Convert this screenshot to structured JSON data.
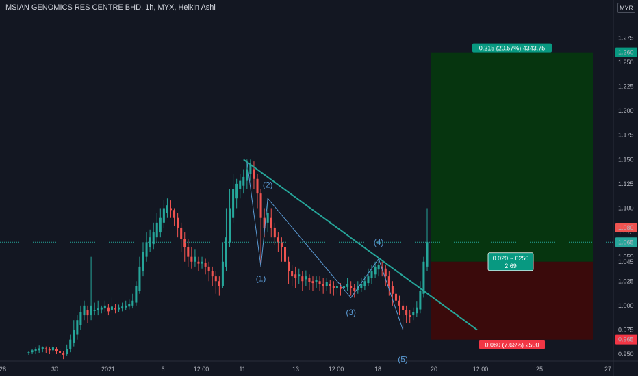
{
  "header": {
    "title": "MSIAN GENOMICS RES CENTRE BHD, 1h, MYX, Heikin Ashi",
    "currency": "MYR"
  },
  "colors": {
    "background": "#131722",
    "up": "#26a69a",
    "down": "#ef5350",
    "trendline": "#26a69a",
    "wave": "#5b9bd5",
    "profit_zone": "#06350f",
    "loss_zone": "#3a0a0b"
  },
  "chart_data": {
    "type": "candlestick",
    "style": "Heikin Ashi",
    "timeframe": "1h",
    "yaxis": {
      "range": [
        0.943,
        1.297
      ],
      "ticks": [
        0.95,
        0.975,
        1.0,
        1.025,
        1.05,
        1.075,
        1.1,
        1.125,
        1.15,
        1.175,
        1.2,
        1.225,
        1.25,
        1.275
      ],
      "tick_labels": [
        "0.950",
        "0.975",
        "1.000",
        "1.025",
        "1.050",
        "1.075",
        "1.100",
        "1.125",
        "1.150",
        "1.175",
        "1.200",
        "1.225",
        "1.250",
        "1.275"
      ],
      "price_tags": [
        {
          "value": 1.26,
          "label": "1.260",
          "color": "#089981"
        },
        {
          "value": 1.08,
          "label": "1.080",
          "color": "#ef5350"
        },
        {
          "value": 1.065,
          "label": "1.065",
          "color": "#26a69a"
        },
        {
          "value": 1.045,
          "label": "1.045",
          "color": "#131722"
        },
        {
          "value": 0.965,
          "label": "0.965",
          "color": "#f23645"
        }
      ]
    },
    "xaxis": {
      "tick_labels": [
        "28",
        "30",
        "2021",
        "6",
        "12:00",
        "11",
        "13",
        "12:00",
        "18",
        "20",
        "12:00",
        "25",
        "27"
      ]
    },
    "candles": [
      [
        0.951,
        0.952,
        0.949,
        0.953,
        "up"
      ],
      [
        0.952,
        0.954,
        0.95,
        0.955,
        "up"
      ],
      [
        0.953,
        0.955,
        0.95,
        0.957,
        "up"
      ],
      [
        0.954,
        0.956,
        0.951,
        0.959,
        "up"
      ],
      [
        0.955,
        0.957,
        0.952,
        0.958,
        "up"
      ],
      [
        0.956,
        0.955,
        0.951,
        0.958,
        "down"
      ],
      [
        0.955,
        0.954,
        0.95,
        0.957,
        "down"
      ],
      [
        0.954,
        0.957,
        0.952,
        0.959,
        "up"
      ],
      [
        0.955,
        0.953,
        0.95,
        0.957,
        "down"
      ],
      [
        0.953,
        0.951,
        0.947,
        0.955,
        "down"
      ],
      [
        0.951,
        0.949,
        0.945,
        0.953,
        "down"
      ],
      [
        0.95,
        0.955,
        0.948,
        0.96,
        "up"
      ],
      [
        0.955,
        0.965,
        0.952,
        0.97,
        "up"
      ],
      [
        0.962,
        0.975,
        0.958,
        0.985,
        "up"
      ],
      [
        0.97,
        0.985,
        0.965,
        0.99,
        "up"
      ],
      [
        0.98,
        0.993,
        0.975,
        1.0,
        "up"
      ],
      [
        0.99,
        1.0,
        0.985,
        1.005,
        "up"
      ],
      [
        0.995,
        0.99,
        0.982,
        1.0,
        "down"
      ],
      [
        0.99,
        1.0,
        0.985,
        1.05,
        "up"
      ],
      [
        0.995,
        0.995,
        0.99,
        1.003,
        "up"
      ],
      [
        0.995,
        0.997,
        0.99,
        1.005,
        "up"
      ],
      [
        0.996,
        0.998,
        0.992,
        1.0,
        "up"
      ],
      [
        0.997,
        1.0,
        0.993,
        1.005,
        "up"
      ],
      [
        0.998,
        0.994,
        0.99,
        1.002,
        "down"
      ],
      [
        0.995,
        0.999,
        0.992,
        1.008,
        "up"
      ],
      [
        0.997,
        0.996,
        0.992,
        1.002,
        "down"
      ],
      [
        0.996,
        0.998,
        0.993,
        1.001,
        "up"
      ],
      [
        0.997,
        0.999,
        0.994,
        1.003,
        "up"
      ],
      [
        0.998,
        1.0,
        0.995,
        1.005,
        "up"
      ],
      [
        0.999,
        1.002,
        0.996,
        1.006,
        "up"
      ],
      [
        1.0,
        1.005,
        0.997,
        1.012,
        "up"
      ],
      [
        1.003,
        1.02,
        1.0,
        1.025,
        "up"
      ],
      [
        1.015,
        1.04,
        1.012,
        1.05,
        "up"
      ],
      [
        1.035,
        1.055,
        1.03,
        1.065,
        "up"
      ],
      [
        1.05,
        1.065,
        1.045,
        1.075,
        "up"
      ],
      [
        1.06,
        1.07,
        1.055,
        1.078,
        "up"
      ],
      [
        1.063,
        1.075,
        1.058,
        1.085,
        "up"
      ],
      [
        1.07,
        1.085,
        1.065,
        1.095,
        "up"
      ],
      [
        1.075,
        1.09,
        1.07,
        1.1,
        "up"
      ],
      [
        1.085,
        1.1,
        1.08,
        1.108,
        "up"
      ],
      [
        1.095,
        1.103,
        1.09,
        1.11,
        "up"
      ],
      [
        1.1,
        1.098,
        1.09,
        1.108,
        "down"
      ],
      [
        1.098,
        1.09,
        1.082,
        1.1,
        "down"
      ],
      [
        1.09,
        1.08,
        1.07,
        1.095,
        "down"
      ],
      [
        1.08,
        1.068,
        1.055,
        1.085,
        "down"
      ],
      [
        1.068,
        1.06,
        1.045,
        1.075,
        "down"
      ],
      [
        1.06,
        1.05,
        1.04,
        1.068,
        "down"
      ],
      [
        1.05,
        1.045,
        1.038,
        1.06,
        "down"
      ],
      [
        1.045,
        1.05,
        1.04,
        1.058,
        "up"
      ],
      [
        1.045,
        1.043,
        1.035,
        1.05,
        "down"
      ],
      [
        1.043,
        1.045,
        1.038,
        1.05,
        "up"
      ],
      [
        1.044,
        1.04,
        1.032,
        1.048,
        "down"
      ],
      [
        1.04,
        1.035,
        1.025,
        1.045,
        "down"
      ],
      [
        1.035,
        1.03,
        1.02,
        1.04,
        "down"
      ],
      [
        1.03,
        1.025,
        1.012,
        1.035,
        "down"
      ],
      [
        1.025,
        1.02,
        1.01,
        1.03,
        "down"
      ],
      [
        1.02,
        1.045,
        1.018,
        1.065,
        "up"
      ],
      [
        1.04,
        1.07,
        1.035,
        1.1,
        "up"
      ],
      [
        1.065,
        1.1,
        1.06,
        1.12,
        "up"
      ],
      [
        1.09,
        1.12,
        1.085,
        1.135,
        "up"
      ],
      [
        1.11,
        1.125,
        1.1,
        1.13,
        "up"
      ],
      [
        1.12,
        1.128,
        1.11,
        1.135,
        "up"
      ],
      [
        1.123,
        1.132,
        1.115,
        1.14,
        "up"
      ],
      [
        1.128,
        1.14,
        1.12,
        1.15,
        "up"
      ],
      [
        1.135,
        1.145,
        1.128,
        1.15,
        "up"
      ],
      [
        1.14,
        1.13,
        1.12,
        1.148,
        "down"
      ],
      [
        1.13,
        1.115,
        1.1,
        1.135,
        "down"
      ],
      [
        1.115,
        1.09,
        1.04,
        1.12,
        "down"
      ],
      [
        1.09,
        1.08,
        1.07,
        1.1,
        "down"
      ],
      [
        1.085,
        1.095,
        1.075,
        1.11,
        "up"
      ],
      [
        1.09,
        1.08,
        1.07,
        1.1,
        "down"
      ],
      [
        1.08,
        1.07,
        1.062,
        1.085,
        "down"
      ],
      [
        1.07,
        1.065,
        1.055,
        1.075,
        "down"
      ],
      [
        1.065,
        1.06,
        1.045,
        1.07,
        "down"
      ],
      [
        1.06,
        1.045,
        1.03,
        1.065,
        "down"
      ],
      [
        1.045,
        1.035,
        1.022,
        1.05,
        "down"
      ],
      [
        1.035,
        1.03,
        1.02,
        1.042,
        "down"
      ],
      [
        1.032,
        1.028,
        1.018,
        1.04,
        "down"
      ],
      [
        1.03,
        1.032,
        1.022,
        1.038,
        "up"
      ],
      [
        1.03,
        1.025,
        1.015,
        1.035,
        "down"
      ],
      [
        1.027,
        1.03,
        1.02,
        1.036,
        "up"
      ],
      [
        1.028,
        1.024,
        1.016,
        1.032,
        "down"
      ],
      [
        1.025,
        1.023,
        1.015,
        1.03,
        "down"
      ],
      [
        1.024,
        1.026,
        1.018,
        1.03,
        "up"
      ],
      [
        1.025,
        1.022,
        1.015,
        1.03,
        "down"
      ],
      [
        1.022,
        1.02,
        1.012,
        1.028,
        "down"
      ],
      [
        1.02,
        1.024,
        1.015,
        1.028,
        "up"
      ],
      [
        1.022,
        1.02,
        1.012,
        1.026,
        "down"
      ],
      [
        1.02,
        1.018,
        1.01,
        1.025,
        "down"
      ],
      [
        1.018,
        1.02,
        1.012,
        1.024,
        "up"
      ],
      [
        1.019,
        1.017,
        1.01,
        1.023,
        "down"
      ],
      [
        1.018,
        1.02,
        1.012,
        1.025,
        "up"
      ],
      [
        1.019,
        1.022,
        1.015,
        1.028,
        "up"
      ],
      [
        1.02,
        1.018,
        1.01,
        1.025,
        "down"
      ],
      [
        1.018,
        1.015,
        1.008,
        1.022,
        "down"
      ],
      [
        1.016,
        1.02,
        1.012,
        1.025,
        "up"
      ],
      [
        1.018,
        1.022,
        1.014,
        1.028,
        "up"
      ],
      [
        1.02,
        1.025,
        1.016,
        1.03,
        "up"
      ],
      [
        1.023,
        1.03,
        1.02,
        1.038,
        "up"
      ],
      [
        1.028,
        1.035,
        1.022,
        1.042,
        "up"
      ],
      [
        1.032,
        1.04,
        1.028,
        1.045,
        "up"
      ],
      [
        1.037,
        1.042,
        1.03,
        1.048,
        "up"
      ],
      [
        1.04,
        1.038,
        1.03,
        1.045,
        "down"
      ],
      [
        1.038,
        1.03,
        1.02,
        1.042,
        "down"
      ],
      [
        1.03,
        1.02,
        1.01,
        1.035,
        "down"
      ],
      [
        1.02,
        1.012,
        1.0,
        1.025,
        "down"
      ],
      [
        1.012,
        1.005,
        0.995,
        1.018,
        "down"
      ],
      [
        1.005,
        1.0,
        0.99,
        1.01,
        "down"
      ],
      [
        1.0,
        0.995,
        0.975,
        1.005,
        "down"
      ],
      [
        0.995,
        0.99,
        0.982,
        1.0,
        "down"
      ],
      [
        0.99,
        0.988,
        0.982,
        0.995,
        "down"
      ],
      [
        0.99,
        0.993,
        0.985,
        0.998,
        "up"
      ],
      [
        0.992,
        0.998,
        0.988,
        1.004,
        "up"
      ],
      [
        0.996,
        1.015,
        0.992,
        1.025,
        "up"
      ],
      [
        1.012,
        1.045,
        1.008,
        1.05,
        "up"
      ],
      [
        1.04,
        1.065,
        1.035,
        1.1,
        "up"
      ]
    ],
    "wave_labels": [
      {
        "label": "(1)",
        "value": 1.025
      },
      {
        "label": "(2)",
        "value": 1.121
      },
      {
        "label": "(3)",
        "value": 0.99
      },
      {
        "label": "(4)",
        "value": 1.062
      },
      {
        "label": "(5)",
        "value": 0.942
      }
    ],
    "trendline": {
      "from": 1.15,
      "to": 0.975
    },
    "position": {
      "entry": 1.045,
      "target": 1.26,
      "stop": 0.965,
      "profit_label": "0.215 (20.57%) 4343.75",
      "loss_label": "0.080 (7.66%) 2500",
      "center_label_line1": "0.020 ~ 6250",
      "center_label_line2": "2.69"
    },
    "last_price": 1.065
  }
}
